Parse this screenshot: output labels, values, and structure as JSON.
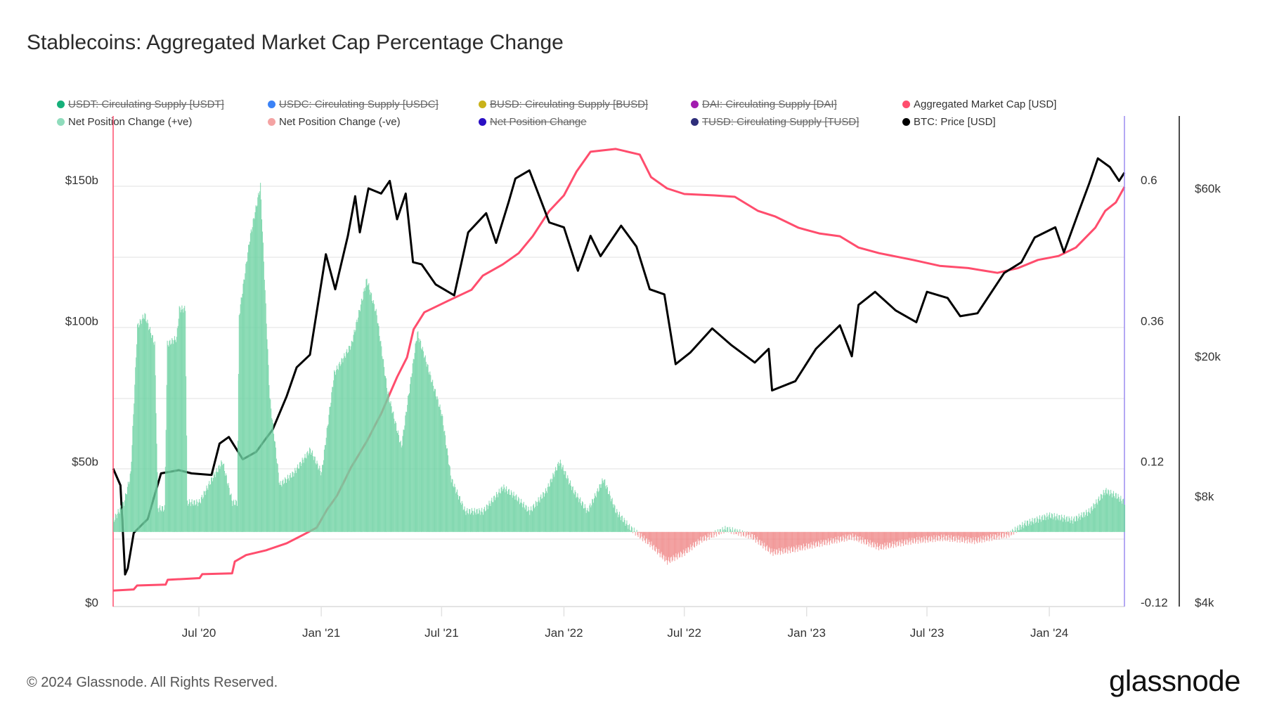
{
  "title": "Stablecoins: Aggregated Market Cap Percentage Change",
  "footer": "© 2024 Glassnode. All Rights Reserved.",
  "logo": "glassnode",
  "legend": [
    {
      "label": "USDT: Circulating Supply [USDT]",
      "color": "#16b07a",
      "enabled": false
    },
    {
      "label": "USDC: Circulating Supply [USDC]",
      "color": "#3b82f6",
      "enabled": false
    },
    {
      "label": "BUSD: Circulating Supply [BUSD]",
      "color": "#c9b21a",
      "enabled": false
    },
    {
      "label": "DAI: Circulating Supply [DAI]",
      "color": "#a21caf",
      "enabled": false
    },
    {
      "label": "Aggregated Market Cap [USD]",
      "color": "#ff4d6d",
      "enabled": true
    },
    {
      "label": "Net Position Change (+ve)",
      "color": "#8fdcbc",
      "enabled": true
    },
    {
      "label": "Net Position Change (-ve)",
      "color": "#f4a3a3",
      "enabled": true
    },
    {
      "label": "Net Position Change",
      "color": "#2a0fc4",
      "enabled": false
    },
    {
      "label": "TUSD: Circulating Supply [TUSD]",
      "color": "#2e2e7a",
      "enabled": false
    },
    {
      "label": "BTC: Price [USD]",
      "color": "#000000",
      "enabled": true
    }
  ],
  "chart_data": {
    "type": "line",
    "title": "Stablecoins: Aggregated Market Cap Percentage Change",
    "x_range": [
      "2020-02-23",
      "2024-04-23"
    ],
    "x_ticks": [
      {
        "date": "2020-07-01",
        "label": "Jul '20"
      },
      {
        "date": "2021-01-01",
        "label": "Jan '21"
      },
      {
        "date": "2021-07-01",
        "label": "Jul '21"
      },
      {
        "date": "2022-01-01",
        "label": "Jan '22"
      },
      {
        "date": "2022-07-01",
        "label": "Jul '22"
      },
      {
        "date": "2023-01-01",
        "label": "Jan '23"
      },
      {
        "date": "2023-07-01",
        "label": "Jul '23"
      },
      {
        "date": "2024-01-01",
        "label": "Jan '24"
      }
    ],
    "y_left": {
      "unit": "USD billions",
      "range": [
        0,
        150
      ],
      "ticks": [
        {
          "v": 0,
          "label": "$0"
        },
        {
          "v": 50,
          "label": "$50b"
        },
        {
          "v": 100,
          "label": "$100b"
        },
        {
          "v": 150,
          "label": "$150b"
        }
      ]
    },
    "y_right_pct": {
      "range": [
        -0.12,
        0.6
      ],
      "ticks": [
        {
          "v": -0.12,
          "label": "-0.12"
        },
        {
          "v": 0.12,
          "label": "0.12"
        },
        {
          "v": 0.36,
          "label": "0.36"
        },
        {
          "v": 0.6,
          "label": "0.6"
        }
      ]
    },
    "y_right_btc": {
      "scale": "log",
      "range": [
        4000,
        60000
      ],
      "ticks": [
        {
          "v": 4000,
          "label": "$4k"
        },
        {
          "v": 8000,
          "label": "$8k"
        },
        {
          "v": 20000,
          "label": "$20k"
        },
        {
          "v": 60000,
          "label": "$60k"
        }
      ]
    },
    "grid": true,
    "legend_position": "top",
    "series": [
      {
        "name": "Aggregated Market Cap [USD]",
        "axis": "left",
        "color": "#ff4d6d",
        "points": [
          [
            "2020-02-23",
            4.2
          ],
          [
            "2020-03-25",
            4.6
          ],
          [
            "2020-03-30",
            6.0
          ],
          [
            "2020-05-12",
            6.3
          ],
          [
            "2020-05-15",
            8.0
          ],
          [
            "2020-07-02",
            8.6
          ],
          [
            "2020-07-06",
            10.0
          ],
          [
            "2020-08-20",
            10.3
          ],
          [
            "2020-08-24",
            14.5
          ],
          [
            "2020-09-10",
            16.8
          ],
          [
            "2020-10-10",
            18.5
          ],
          [
            "2020-11-10",
            21.0
          ],
          [
            "2020-12-05",
            24.0
          ],
          [
            "2020-12-25",
            26.5
          ],
          [
            "2021-01-10",
            33.0
          ],
          [
            "2021-01-25",
            38.0
          ],
          [
            "2021-02-15",
            48.0
          ],
          [
            "2021-03-10",
            57.0
          ],
          [
            "2021-04-01",
            67.0
          ],
          [
            "2021-04-25",
            80.0
          ],
          [
            "2021-05-10",
            87.0
          ],
          [
            "2021-05-20",
            97.0
          ],
          [
            "2021-06-05",
            103.0
          ],
          [
            "2021-07-10",
            107.0
          ],
          [
            "2021-08-15",
            111.0
          ],
          [
            "2021-09-01",
            116.0
          ],
          [
            "2021-10-01",
            120.0
          ],
          [
            "2021-10-25",
            124.0
          ],
          [
            "2021-11-15",
            130.0
          ],
          [
            "2021-12-10",
            139.0
          ],
          [
            "2022-01-01",
            144.5
          ],
          [
            "2022-01-20",
            153.0
          ],
          [
            "2022-02-10",
            160.0
          ],
          [
            "2022-03-20",
            161.0
          ],
          [
            "2022-04-25",
            159.0
          ],
          [
            "2022-05-12",
            151.0
          ],
          [
            "2022-06-05",
            147.0
          ],
          [
            "2022-07-01",
            145.0
          ],
          [
            "2022-08-15",
            144.5
          ],
          [
            "2022-09-15",
            144.0
          ],
          [
            "2022-10-20",
            139.0
          ],
          [
            "2022-11-15",
            137.0
          ],
          [
            "2022-12-20",
            133.0
          ],
          [
            "2023-01-20",
            131.0
          ],
          [
            "2023-02-20",
            130.0
          ],
          [
            "2023-03-20",
            126.0
          ],
          [
            "2023-04-20",
            124.0
          ],
          [
            "2023-06-10",
            121.6
          ],
          [
            "2023-07-20",
            119.5
          ],
          [
            "2023-09-01",
            118.7
          ],
          [
            "2023-10-15",
            117.0
          ],
          [
            "2023-11-15",
            118.7
          ],
          [
            "2023-12-15",
            121.6
          ],
          [
            "2024-01-15",
            123.0
          ],
          [
            "2024-02-10",
            126.0
          ],
          [
            "2024-03-10",
            133.0
          ],
          [
            "2024-03-25",
            139.0
          ],
          [
            "2024-04-10",
            142.0
          ],
          [
            "2024-04-23",
            147.5
          ]
        ]
      },
      {
        "name": "BTC: Price [USD]",
        "axis": "right_btc",
        "color": "#000000",
        "points": [
          [
            "2020-02-23",
            9600
          ],
          [
            "2020-03-05",
            8600
          ],
          [
            "2020-03-12",
            4800
          ],
          [
            "2020-03-16",
            5000
          ],
          [
            "2020-03-25",
            6300
          ],
          [
            "2020-04-15",
            6900
          ],
          [
            "2020-05-05",
            9300
          ],
          [
            "2020-06-01",
            9500
          ],
          [
            "2020-06-20",
            9300
          ],
          [
            "2020-07-20",
            9200
          ],
          [
            "2020-08-01",
            11300
          ],
          [
            "2020-08-15",
            11800
          ],
          [
            "2020-09-05",
            10200
          ],
          [
            "2020-09-25",
            10700
          ],
          [
            "2020-10-20",
            12400
          ],
          [
            "2020-11-10",
            15400
          ],
          [
            "2020-11-25",
            18600
          ],
          [
            "2020-12-15",
            20200
          ],
          [
            "2021-01-08",
            39000
          ],
          [
            "2021-01-22",
            31000
          ],
          [
            "2021-02-10",
            44000
          ],
          [
            "2021-02-21",
            57000
          ],
          [
            "2021-02-28",
            45000
          ],
          [
            "2021-03-13",
            60000
          ],
          [
            "2021-04-01",
            58000
          ],
          [
            "2021-04-14",
            63000
          ],
          [
            "2021-04-25",
            49000
          ],
          [
            "2021-05-08",
            58000
          ],
          [
            "2021-05-19",
            37000
          ],
          [
            "2021-06-01",
            36500
          ],
          [
            "2021-06-22",
            32000
          ],
          [
            "2021-07-20",
            29800
          ],
          [
            "2021-08-10",
            45000
          ],
          [
            "2021-09-06",
            51000
          ],
          [
            "2021-09-21",
            42000
          ],
          [
            "2021-10-10",
            55000
          ],
          [
            "2021-10-20",
            64000
          ],
          [
            "2021-11-10",
            67500
          ],
          [
            "2021-11-25",
            57000
          ],
          [
            "2021-12-10",
            48000
          ],
          [
            "2022-01-01",
            46500
          ],
          [
            "2022-01-22",
            35000
          ],
          [
            "2022-02-10",
            44000
          ],
          [
            "2022-02-25",
            38500
          ],
          [
            "2022-03-28",
            47000
          ],
          [
            "2022-04-20",
            41000
          ],
          [
            "2022-05-10",
            31000
          ],
          [
            "2022-06-01",
            30000
          ],
          [
            "2022-06-18",
            19000
          ],
          [
            "2022-07-10",
            20500
          ],
          [
            "2022-08-12",
            24000
          ],
          [
            "2022-09-10",
            21500
          ],
          [
            "2022-10-15",
            19200
          ],
          [
            "2022-11-05",
            21000
          ],
          [
            "2022-11-10",
            16000
          ],
          [
            "2022-12-15",
            17000
          ],
          [
            "2023-01-15",
            21000
          ],
          [
            "2023-02-20",
            24500
          ],
          [
            "2023-03-10",
            20000
          ],
          [
            "2023-03-20",
            28000
          ],
          [
            "2023-04-14",
            30500
          ],
          [
            "2023-05-15",
            27000
          ],
          [
            "2023-06-15",
            25000
          ],
          [
            "2023-07-01",
            30500
          ],
          [
            "2023-08-01",
            29300
          ],
          [
            "2023-08-20",
            26000
          ],
          [
            "2023-09-15",
            26500
          ],
          [
            "2023-10-25",
            34500
          ],
          [
            "2023-11-20",
            37000
          ],
          [
            "2023-12-10",
            43500
          ],
          [
            "2024-01-10",
            46500
          ],
          [
            "2024-01-23",
            39500
          ],
          [
            "2024-02-15",
            52000
          ],
          [
            "2024-03-01",
            62000
          ],
          [
            "2024-03-14",
            73000
          ],
          [
            "2024-04-01",
            69000
          ],
          [
            "2024-04-15",
            63000
          ],
          [
            "2024-04-23",
            66500
          ]
        ]
      },
      {
        "name": "Net Position Change (+ve)",
        "axis": "right_pct",
        "type": "bar",
        "color": "#8fdcbc",
        "color_negative": "#f4a3a3",
        "points": [
          [
            "2020-02-23",
            0.02
          ],
          [
            "2020-03-10",
            0.05
          ],
          [
            "2020-03-20",
            0.1
          ],
          [
            "2020-03-30",
            0.35
          ],
          [
            "2020-04-10",
            0.37
          ],
          [
            "2020-04-25",
            0.32
          ],
          [
            "2020-04-30",
            0.04
          ],
          [
            "2020-05-10",
            0.04
          ],
          [
            "2020-05-14",
            0.32
          ],
          [
            "2020-05-28",
            0.33
          ],
          [
            "2020-06-01",
            0.38
          ],
          [
            "2020-06-10",
            0.38
          ],
          [
            "2020-06-13",
            0.05
          ],
          [
            "2020-07-01",
            0.05
          ],
          [
            "2020-07-20",
            0.09
          ],
          [
            "2020-08-05",
            0.12
          ],
          [
            "2020-08-20",
            0.05
          ],
          [
            "2020-08-27",
            0.05
          ],
          [
            "2020-08-30",
            0.37
          ],
          [
            "2020-09-15",
            0.5
          ],
          [
            "2020-10-01",
            0.59
          ],
          [
            "2020-10-15",
            0.23
          ],
          [
            "2020-10-30",
            0.08
          ],
          [
            "2020-11-20",
            0.1
          ],
          [
            "2020-12-15",
            0.14
          ],
          [
            "2021-01-01",
            0.1
          ],
          [
            "2021-01-20",
            0.27
          ],
          [
            "2021-02-15",
            0.32
          ],
          [
            "2021-03-10",
            0.43
          ],
          [
            "2021-03-25",
            0.37
          ],
          [
            "2021-04-10",
            0.24
          ],
          [
            "2021-05-01",
            0.145
          ],
          [
            "2021-05-25",
            0.34
          ],
          [
            "2021-06-10",
            0.28
          ],
          [
            "2021-07-01",
            0.2
          ],
          [
            "2021-07-15",
            0.09
          ],
          [
            "2021-08-05",
            0.035
          ],
          [
            "2021-09-01",
            0.035
          ],
          [
            "2021-10-01",
            0.076
          ],
          [
            "2021-10-20",
            0.06
          ],
          [
            "2021-11-10",
            0.035
          ],
          [
            "2021-12-05",
            0.07
          ],
          [
            "2021-12-25",
            0.12
          ],
          [
            "2022-01-15",
            0.07
          ],
          [
            "2022-02-05",
            0.035
          ],
          [
            "2022-03-01",
            0.09
          ],
          [
            "2022-03-20",
            0.035
          ],
          [
            "2022-04-10",
            0.007
          ],
          [
            "2022-05-10",
            -0.02
          ],
          [
            "2022-06-05",
            -0.05
          ],
          [
            "2022-07-01",
            -0.035
          ],
          [
            "2022-07-25",
            -0.014
          ],
          [
            "2022-09-01",
            0.005
          ],
          [
            "2022-10-10",
            -0.007
          ],
          [
            "2022-11-10",
            -0.035
          ],
          [
            "2022-12-10",
            -0.03
          ],
          [
            "2023-01-20",
            -0.02
          ],
          [
            "2023-03-10",
            -0.008
          ],
          [
            "2023-04-20",
            -0.026
          ],
          [
            "2023-06-10",
            -0.015
          ],
          [
            "2023-07-25",
            -0.01
          ],
          [
            "2023-09-10",
            -0.015
          ],
          [
            "2023-11-01",
            -0.004
          ],
          [
            "2023-11-25",
            0.014
          ],
          [
            "2024-01-01",
            0.028
          ],
          [
            "2024-02-05",
            0.02
          ],
          [
            "2024-03-01",
            0.035
          ],
          [
            "2024-03-25",
            0.07
          ],
          [
            "2024-04-10",
            0.062
          ],
          [
            "2024-04-23",
            0.05
          ]
        ]
      }
    ]
  }
}
